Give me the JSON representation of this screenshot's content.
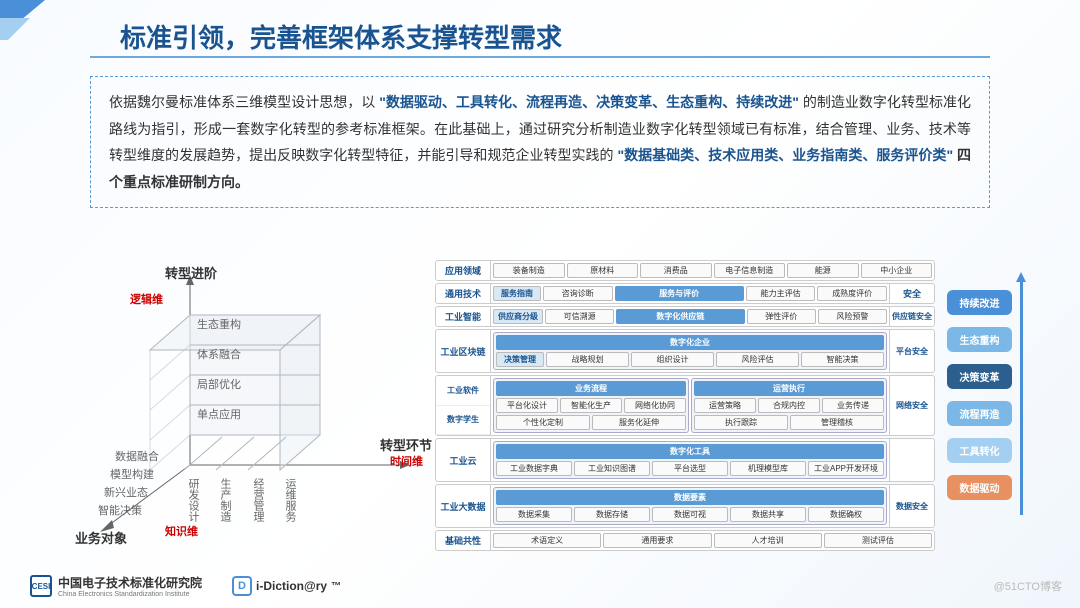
{
  "title": "标准引领，完善框架体系支撑转型需求",
  "desc": {
    "t1": "依据魏尔曼标准体系三维模型设计思想，以",
    "h1": "\"数据驱动、工具转化、流程再造、决策变革、生态重构、持续改进\"",
    "t2": "的制造业数字化转型标准化路线为指引，形成一套数字化转型的参考标准框架。在此基础上，通过研究分析制造业数字化转型领域已有标准，结合管理、业务、技术等转型维度的发展趋势，提出反映数字化转型特征，并能引导和规范企业转型实践的",
    "h2": "\"数据基础类、技术应用类、业务指南类、服务评价类\"",
    "t3": "四个重点标准研制方向。"
  },
  "cube": {
    "axis_y": "转型进阶",
    "axis_y_sub": "逻辑维",
    "axis_x": "转型环节",
    "axis_x_sub": "时间维",
    "axis_z": "业务对象",
    "axis_z_sub": "知识维",
    "y_levels": [
      "生态重构",
      "体系融合",
      "局部优化",
      "单点应用"
    ],
    "x_levels": [
      "研发设计",
      "生产制造",
      "经营管理",
      "运维服务"
    ],
    "z_levels": [
      "数据融合",
      "模型构建",
      "新兴业态",
      "智能决策"
    ],
    "colors": {
      "line": "#b0b7c0",
      "axis": "#666",
      "red": "#c00000"
    }
  },
  "fw": {
    "rows": [
      {
        "left": "应用领域",
        "lines": [
          [
            "装备制造",
            "原材料",
            "消费品",
            "电子信息制造",
            "能源",
            "中小企业"
          ]
        ]
      },
      {
        "left": "通用技术",
        "lines": [
          {
            "header": true,
            "items": [
              {
                "t": "服务指南",
                "sub": true
              },
              {
                "t": "咨询诊断"
              },
              {
                "t": "服务与评价",
                "hdr": true,
                "flex": 2
              },
              {
                "t": "能力主评估"
              },
              {
                "t": "成熟度评价"
              }
            ]
          },
          "sep",
          {
            "section_header": "安全"
          }
        ]
      },
      {
        "left": "工业智能",
        "lines": [
          {
            "items": [
              {
                "t": "供应商分级",
                "sub": true
              },
              {
                "t": "可信溯源"
              },
              {
                "t": "数字化供应链",
                "hdr": true,
                "flex": 2
              },
              {
                "t": "弹性评价"
              },
              {
                "t": "风险预警"
              }
            ]
          },
          {
            "right": "供应链安全"
          }
        ]
      },
      {
        "left": "工业区块链",
        "nested": {
          "title": "数字化企业",
          "sub": [
            {
              "hdr": "决策管理",
              "items": [
                "战略规划",
                "组织设计",
                "风险评估",
                "智能决策"
              ]
            }
          ]
        },
        "right": "平台安全"
      },
      {
        "left": "工业软件",
        "nested_dual": {
          "left": {
            "hdr": "业务流程",
            "rows": [
              [
                "平台化设计",
                "智能化生产",
                "网络化协同"
              ],
              [
                "个性化定制",
                "服务化延伸"
              ]
            ]
          },
          "right": {
            "hdr": "运营执行",
            "rows": [
              [
                "运营策略",
                "合规内控",
                "业务传递"
              ],
              [
                "执行跟踪",
                "管理稽核"
              ]
            ]
          }
        }
      },
      {
        "left": "数字学生",
        "right": "网络安全"
      },
      {
        "left": "工业云",
        "nested": {
          "title": "数字化工具",
          "items": [
            "工业数据字典",
            "工业知识图谱",
            "平台选型",
            "机理模型库",
            "工业APP开发环境"
          ]
        }
      },
      {
        "left": "工业大数据",
        "nested": {
          "title": "数据要素",
          "items": [
            "数据采集",
            "数据存储",
            "数据可视",
            "数据共享",
            "数据确权"
          ]
        },
        "right": "数据安全"
      },
      {
        "left": "基础共性",
        "lines": [
          [
            "术语定义",
            "通用要求",
            "人才培训",
            "测试评估"
          ]
        ]
      }
    ]
  },
  "pills": [
    {
      "t": "持续改进",
      "c": "#4a90d9"
    },
    {
      "t": "生态重构",
      "c": "#7bb8e8"
    },
    {
      "t": "决策变革",
      "c": "#2c5f8d"
    },
    {
      "t": "流程再造",
      "c": "#7bb8e8"
    },
    {
      "t": "工具转化",
      "c": "#a5cff0"
    },
    {
      "t": "数据驱动",
      "c": "#e89060"
    }
  ],
  "footer": {
    "cesi": "CESI",
    "org_cn": "中国电子技术标准化研究院",
    "org_en": "China Electronics Standardization Institute",
    "idict": "i-Diction@ry",
    "tm": "™"
  },
  "watermark": "@51CTO博客"
}
